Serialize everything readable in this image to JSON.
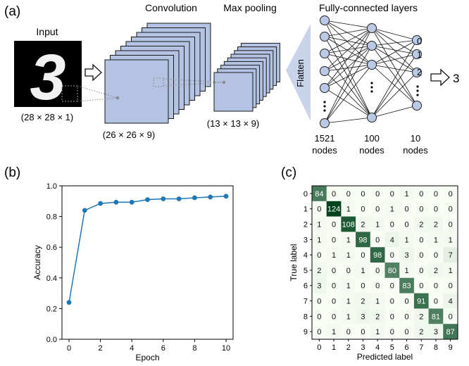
{
  "panel_a": {
    "label": "(a)",
    "input_title": "Input",
    "input_dims": "(28 × 28 × 1)",
    "digit_glyph": "3",
    "conv_title": "Convolution",
    "conv_dims": "(26 × 26 × 9)",
    "pool_title": "Max pooling",
    "pool_dims": "(13 × 13 × 9)",
    "fc_title": "Fully-connected layers",
    "flatten_label": "Flatten",
    "layer1_count": "1521",
    "layer2_count": "100",
    "layer3_count": "10",
    "nodes_word": "nodes",
    "output_labels": [
      "0",
      "1",
      "2",
      "9"
    ],
    "prediction": "3"
  },
  "panel_b_label": "(b)",
  "panel_c_label": "(c)",
  "colors": {
    "layer_fill": "#b4c3e3",
    "layer_stroke": "#1a1a1a",
    "node_fill": "#b9c9e6",
    "line_color": "#1f77b4",
    "heat_low": "#f7fcf5",
    "heat_high": "#00441b"
  },
  "chart_data": [
    {
      "type": "line",
      "title": "",
      "xlabel": "Epoch",
      "ylabel": "Accuracy",
      "x": [
        0,
        1,
        2,
        3,
        4,
        5,
        6,
        7,
        8,
        9,
        10
      ],
      "series": [
        {
          "values": [
            0.24,
            0.84,
            0.885,
            0.893,
            0.893,
            0.91,
            0.915,
            0.915,
            0.922,
            0.927,
            0.932
          ]
        }
      ],
      "xlim": [
        0,
        10
      ],
      "ylim": [
        0.0,
        1.0
      ],
      "xticks": [
        "0",
        "2",
        "4",
        "6",
        "8",
        "10"
      ],
      "yticks": [
        "0.0",
        "0.2",
        "0.4",
        "0.6",
        "0.8",
        "1.0"
      ],
      "grid": false
    },
    {
      "type": "heatmap",
      "title": "",
      "xlabel": "Predicted label",
      "ylabel": "True label",
      "categories": [
        "0",
        "1",
        "2",
        "3",
        "4",
        "5",
        "6",
        "7",
        "8",
        "9"
      ],
      "matrix": [
        [
          84,
          0,
          0,
          0,
          0,
          0,
          1,
          0,
          0,
          0
        ],
        [
          0,
          124,
          1,
          0,
          0,
          1,
          0,
          0,
          0,
          0
        ],
        [
          1,
          0,
          108,
          2,
          1,
          0,
          0,
          2,
          2,
          0
        ],
        [
          1,
          0,
          1,
          98,
          0,
          4,
          1,
          0,
          1,
          1
        ],
        [
          0,
          1,
          1,
          0,
          98,
          0,
          3,
          0,
          0,
          7
        ],
        [
          2,
          0,
          0,
          1,
          0,
          80,
          1,
          0,
          2,
          1
        ],
        [
          3,
          0,
          1,
          0,
          0,
          0,
          83,
          0,
          0,
          0
        ],
        [
          0,
          0,
          1,
          2,
          1,
          0,
          0,
          91,
          0,
          4
        ],
        [
          0,
          0,
          1,
          3,
          2,
          0,
          0,
          2,
          81,
          0
        ],
        [
          0,
          1,
          0,
          0,
          1,
          0,
          0,
          2,
          3,
          87
        ]
      ],
      "grid": false
    }
  ]
}
